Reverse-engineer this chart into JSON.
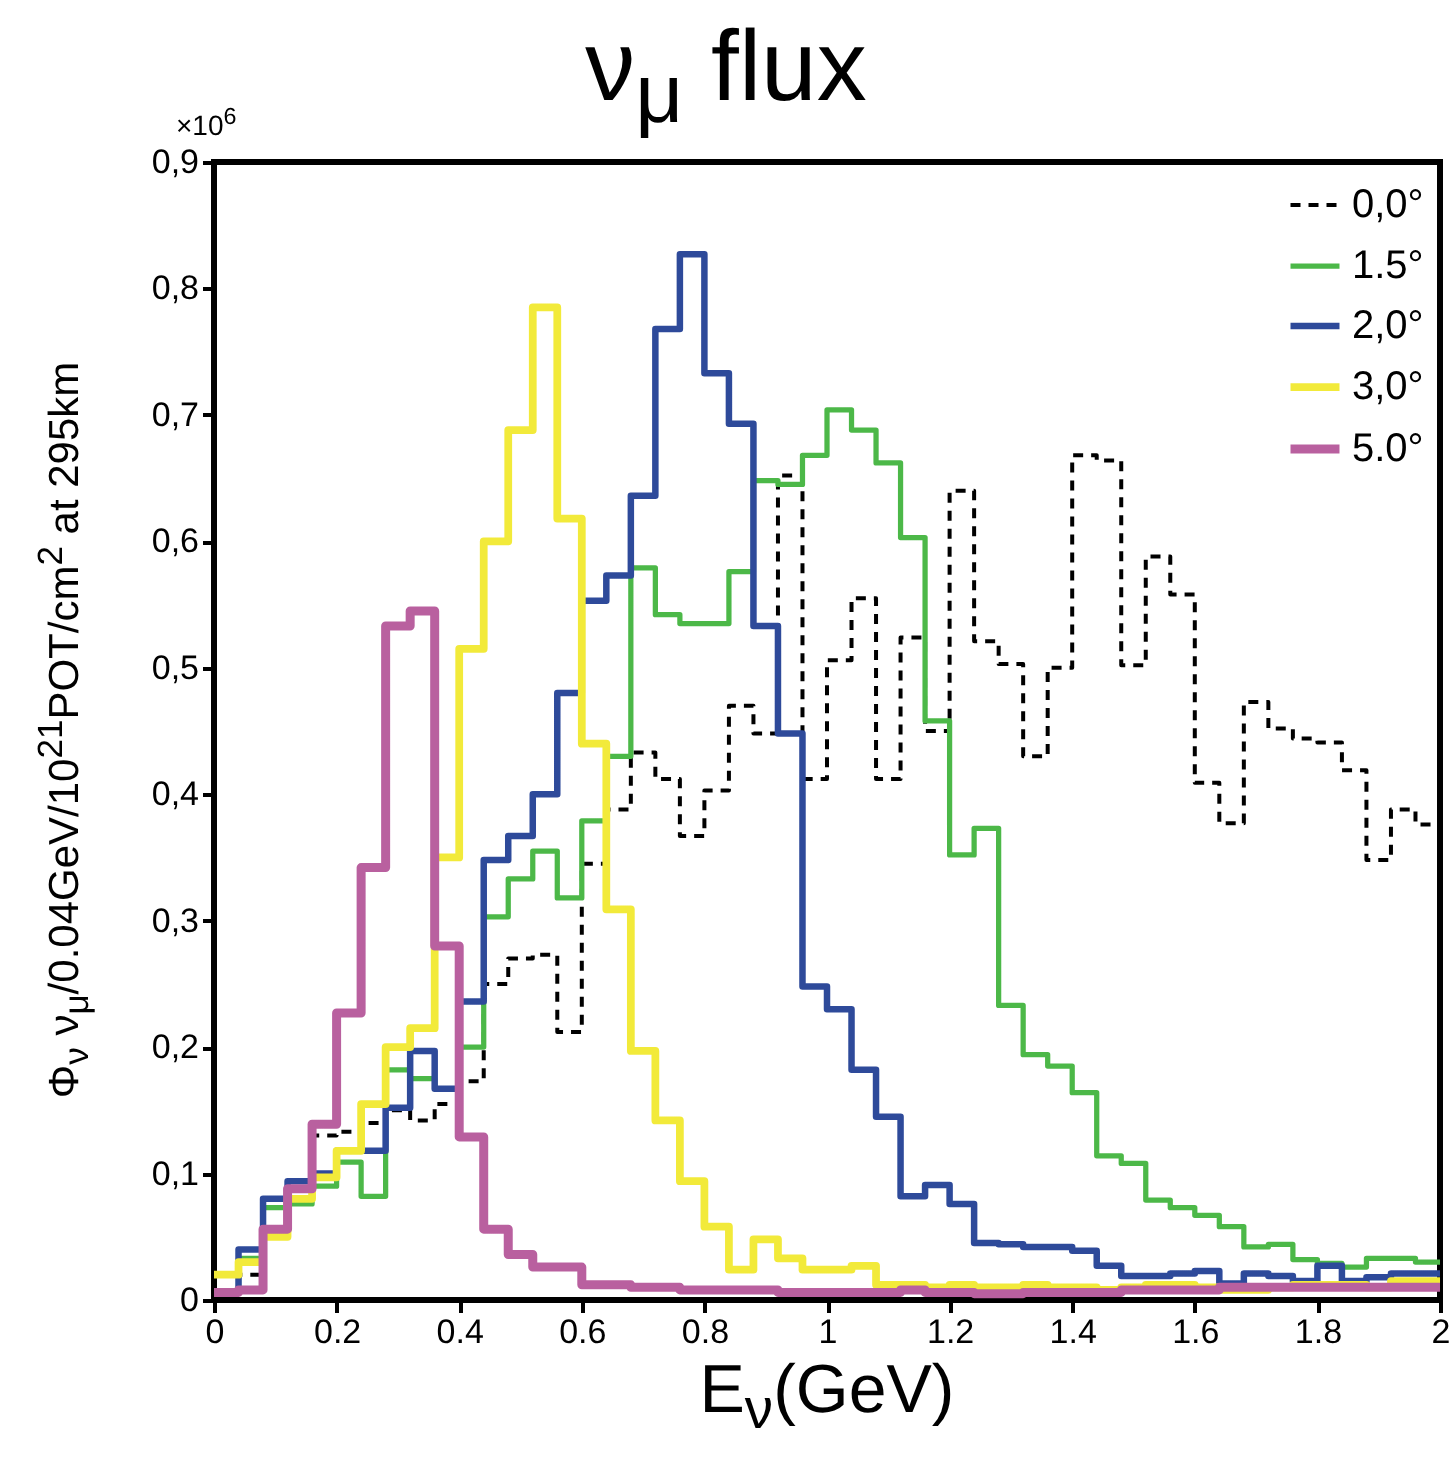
{
  "chart_data": {
    "type": "histogram",
    "title": "ν$_{μ}$ flux",
    "xlabel": "E$_{ν}$(GeV)",
    "ylabel": "Φ$_{ν}$   ν$_{μ}$/0.04GeV/10$^{21}$POT/cm$^{2}$ at 295km",
    "annotations": [
      "×10$^{6}$"
    ],
    "bins": [
      0,
      0.04,
      0.08,
      0.12,
      0.16,
      0.2,
      0.24,
      0.28,
      0.32,
      0.36,
      0.4,
      0.44,
      0.48,
      0.52,
      0.56,
      0.6,
      0.64,
      0.68,
      0.72,
      0.76,
      0.8,
      0.84,
      0.88,
      0.92,
      0.96,
      1,
      1.04,
      1.08,
      1.12,
      1.16,
      1.2,
      1.24,
      1.28,
      1.32,
      1.36,
      1.4,
      1.44,
      1.48,
      1.52,
      1.56,
      1.6,
      1.64,
      1.68,
      1.72,
      1.76,
      1.8,
      1.84,
      1.88,
      1.92,
      1.96,
      2
    ],
    "series": [
      {
        "name": "0,0°",
        "color": "#000000",
        "line_style": "dashed",
        "values": [
          0.006,
          0.02,
          0.05,
          0.08,
          0.13,
          0.133,
          0.14,
          0.15,
          0.142,
          0.155,
          0.173,
          0.25,
          0.27,
          0.273,
          0.212,
          0.345,
          0.388,
          0.433,
          0.412,
          0.367,
          0.403,
          0.47,
          0.448,
          0.652,
          0.412,
          0.506,
          0.555,
          0.412,
          0.524,
          0.45,
          0.64,
          0.521,
          0.503,
          0.43,
          0.5,
          0.668,
          0.664,
          0.502,
          0.588,
          0.558,
          0.409,
          0.377,
          0.473,
          0.452,
          0.444,
          0.441,
          0.419,
          0.348,
          0.388,
          0.376
        ]
      },
      {
        "name": "1.5°",
        "color": "#4cb848",
        "line_style": "solid",
        "values": [
          0.006,
          0.033,
          0.073,
          0.076,
          0.09,
          0.109,
          0.082,
          0.182,
          0.175,
          0.167,
          0.2,
          0.303,
          0.333,
          0.355,
          0.318,
          0.379,
          0.43,
          0.579,
          0.542,
          0.535,
          0.535,
          0.576,
          0.648,
          0.645,
          0.668,
          0.704,
          0.688,
          0.662,
          0.603,
          0.458,
          0.352,
          0.373,
          0.233,
          0.194,
          0.185,
          0.164,
          0.114,
          0.108,
          0.079,
          0.073,
          0.067,
          0.058,
          0.042,
          0.044,
          0.032,
          0.029,
          0.026,
          0.033,
          0.033,
          0.03
        ]
      },
      {
        "name": "2,0°",
        "color": "#2e4a9a",
        "line_style": "solid",
        "values": [
          0.006,
          0.04,
          0.08,
          0.094,
          0.1,
          0.118,
          0.118,
          0.152,
          0.197,
          0.167,
          0.236,
          0.348,
          0.367,
          0.4,
          0.48,
          0.553,
          0.573,
          0.636,
          0.768,
          0.827,
          0.733,
          0.693,
          0.533,
          0.448,
          0.248,
          0.23,
          0.182,
          0.145,
          0.082,
          0.091,
          0.076,
          0.045,
          0.044,
          0.042,
          0.042,
          0.039,
          0.027,
          0.019,
          0.019,
          0.021,
          0.023,
          0.013,
          0.021,
          0.019,
          0.015,
          0.027,
          0.015,
          0.018,
          0.021,
          0.021
        ]
      },
      {
        "name": "3,0°",
        "color": "#f2ea3a",
        "line_style": "solid",
        "values": [
          0.02,
          0.03,
          0.05,
          0.08,
          0.097,
          0.118,
          0.155,
          0.2,
          0.215,
          0.35,
          0.515,
          0.6,
          0.688,
          0.785,
          0.618,
          0.44,
          0.309,
          0.197,
          0.142,
          0.094,
          0.058,
          0.024,
          0.048,
          0.033,
          0.024,
          0.024,
          0.027,
          0.012,
          0.012,
          0.01,
          0.012,
          0.01,
          0.01,
          0.012,
          0.01,
          0.01,
          0.008,
          0.01,
          0.012,
          0.012,
          0.01,
          0.008,
          0.008,
          0.01,
          0.012,
          0.012,
          0.012,
          0.01,
          0.015,
          0.015
        ]
      },
      {
        "name": "5.0°",
        "color": "#b9609f",
        "line_style": "solid",
        "values": [
          0.006,
          0.008,
          0.056,
          0.088,
          0.139,
          0.227,
          0.342,
          0.533,
          0.545,
          0.28,
          0.129,
          0.056,
          0.036,
          0.026,
          0.026,
          0.012,
          0.012,
          0.01,
          0.01,
          0.008,
          0.008,
          0.008,
          0.008,
          0.006,
          0.006,
          0.006,
          0.006,
          0.006,
          0.008,
          0.006,
          0.006,
          0.005,
          0.005,
          0.006,
          0.006,
          0.006,
          0.006,
          0.008,
          0.008,
          0.008,
          0.008,
          0.01,
          0.01,
          0.01,
          0.01,
          0.01,
          0.01,
          0.01,
          0.01,
          0.01
        ]
      }
    ],
    "xlim": [
      0,
      2
    ],
    "xticks": [
      0,
      0.2,
      0.4,
      0.6,
      0.8,
      1,
      1.2,
      1.4,
      1.6,
      1.8,
      2
    ],
    "ylim": [
      0,
      0.9
    ],
    "yticks": [
      0,
      {
        "value": 0.1,
        "label": "0,1"
      },
      {
        "value": 0.2,
        "label": "0,2"
      },
      {
        "value": 0.3,
        "label": "0,3"
      },
      {
        "value": 0.4,
        "label": "0,4"
      },
      {
        "value": 0.5,
        "label": "0,5"
      },
      {
        "value": 0.6,
        "label": "0,6"
      },
      {
        "value": 0.7,
        "label": "0,7"
      },
      {
        "value": 0.8,
        "label": "0,8"
      },
      {
        "value": 0.9,
        "label": "0,9"
      }
    ],
    "grid": false,
    "legend": "top right"
  }
}
